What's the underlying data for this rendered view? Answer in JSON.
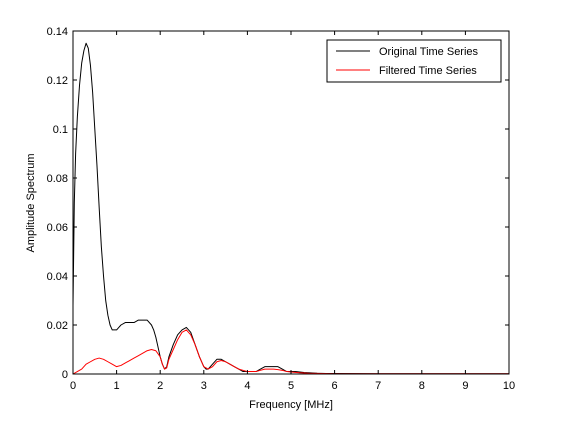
{
  "chart_data": {
    "type": "line",
    "title": "",
    "xlabel": "Frequency [MHz]",
    "ylabel": "Amplitude Spectrum",
    "xlim": [
      0,
      10
    ],
    "ylim": [
      0,
      0.14
    ],
    "x_ticks": [
      0,
      1,
      2,
      3,
      4,
      5,
      6,
      7,
      8,
      9,
      10
    ],
    "y_ticks": [
      0,
      0.02,
      0.04,
      0.06,
      0.08,
      0.1,
      0.12,
      0.14
    ],
    "x_tick_labels": [
      "0",
      "1",
      "2",
      "3",
      "4",
      "5",
      "6",
      "7",
      "8",
      "9",
      "10"
    ],
    "y_tick_labels": [
      "0",
      "0.02",
      "0.04",
      "0.06",
      "0.08",
      "0.1",
      "0.12",
      "0.14"
    ],
    "grid": false,
    "legend_position": "top-right",
    "series": [
      {
        "name": "Original Time Series",
        "color": "#000000",
        "x": [
          0,
          0.03,
          0.06,
          0.1,
          0.15,
          0.2,
          0.25,
          0.3,
          0.35,
          0.4,
          0.45,
          0.5,
          0.55,
          0.6,
          0.65,
          0.7,
          0.75,
          0.8,
          0.85,
          0.9,
          0.95,
          1.0,
          1.05,
          1.1,
          1.2,
          1.3,
          1.4,
          1.5,
          1.6,
          1.7,
          1.8,
          1.85,
          1.9,
          1.95,
          2.0,
          2.05,
          2.1,
          2.15,
          2.2,
          2.3,
          2.4,
          2.5,
          2.6,
          2.7,
          2.8,
          2.9,
          3.0,
          3.05,
          3.1,
          3.2,
          3.3,
          3.4,
          3.5,
          3.6,
          3.7,
          3.8,
          3.9,
          4.0,
          4.1,
          4.2,
          4.3,
          4.4,
          4.5,
          4.6,
          4.7,
          4.8,
          4.9,
          5.0,
          5.1,
          5.2,
          5.3,
          5.4,
          5.5,
          5.6,
          5.8,
          6.0,
          7.0,
          8.0,
          9.0,
          10.0
        ],
        "values": [
          0.028,
          0.07,
          0.09,
          0.105,
          0.118,
          0.127,
          0.132,
          0.135,
          0.133,
          0.126,
          0.115,
          0.1,
          0.085,
          0.068,
          0.052,
          0.04,
          0.03,
          0.024,
          0.02,
          0.018,
          0.018,
          0.018,
          0.019,
          0.02,
          0.021,
          0.021,
          0.021,
          0.022,
          0.022,
          0.022,
          0.02,
          0.018,
          0.015,
          0.011,
          0.007,
          0.004,
          0.002,
          0.003,
          0.007,
          0.012,
          0.016,
          0.018,
          0.019,
          0.017,
          0.012,
          0.007,
          0.003,
          0.002,
          0.002,
          0.004,
          0.006,
          0.006,
          0.005,
          0.004,
          0.003,
          0.002,
          0.001,
          0.001,
          0.001,
          0.001,
          0.002,
          0.003,
          0.003,
          0.003,
          0.003,
          0.002,
          0.001,
          0.001,
          0.001,
          0.0008,
          0.0006,
          0.0005,
          0.0004,
          0.0003,
          0.0002,
          0.0002,
          0.0001,
          0.0001,
          0.0001,
          0.0001
        ]
      },
      {
        "name": "Filtered Time Series",
        "color": "#ff0000",
        "x": [
          0,
          0.1,
          0.2,
          0.3,
          0.4,
          0.5,
          0.6,
          0.7,
          0.8,
          0.9,
          1.0,
          1.1,
          1.2,
          1.3,
          1.4,
          1.5,
          1.6,
          1.7,
          1.8,
          1.9,
          2.0,
          2.05,
          2.1,
          2.15,
          2.2,
          2.3,
          2.4,
          2.5,
          2.6,
          2.7,
          2.8,
          2.9,
          3.0,
          3.1,
          3.2,
          3.3,
          3.4,
          3.5,
          3.6,
          3.7,
          3.8,
          3.9,
          4.0,
          4.1,
          4.2,
          4.3,
          4.4,
          4.5,
          4.6,
          4.7,
          4.8,
          4.9,
          5.0,
          5.2,
          5.4,
          6.0,
          7.0,
          8.0,
          9.0,
          10.0
        ],
        "values": [
          0,
          0.001,
          0.002,
          0.004,
          0.005,
          0.006,
          0.0065,
          0.006,
          0.005,
          0.004,
          0.003,
          0.0035,
          0.0045,
          0.0055,
          0.0065,
          0.0075,
          0.0085,
          0.0095,
          0.01,
          0.0095,
          0.007,
          0.004,
          0.002,
          0.0025,
          0.006,
          0.01,
          0.014,
          0.017,
          0.018,
          0.016,
          0.012,
          0.007,
          0.003,
          0.002,
          0.003,
          0.005,
          0.0055,
          0.005,
          0.004,
          0.003,
          0.002,
          0.0015,
          0.001,
          0.001,
          0.001,
          0.0015,
          0.002,
          0.002,
          0.002,
          0.0018,
          0.0015,
          0.001,
          0.0008,
          0.0005,
          0.0003,
          0.0001,
          0.0001,
          0.0001,
          0.0001,
          0.0001
        ]
      }
    ]
  }
}
